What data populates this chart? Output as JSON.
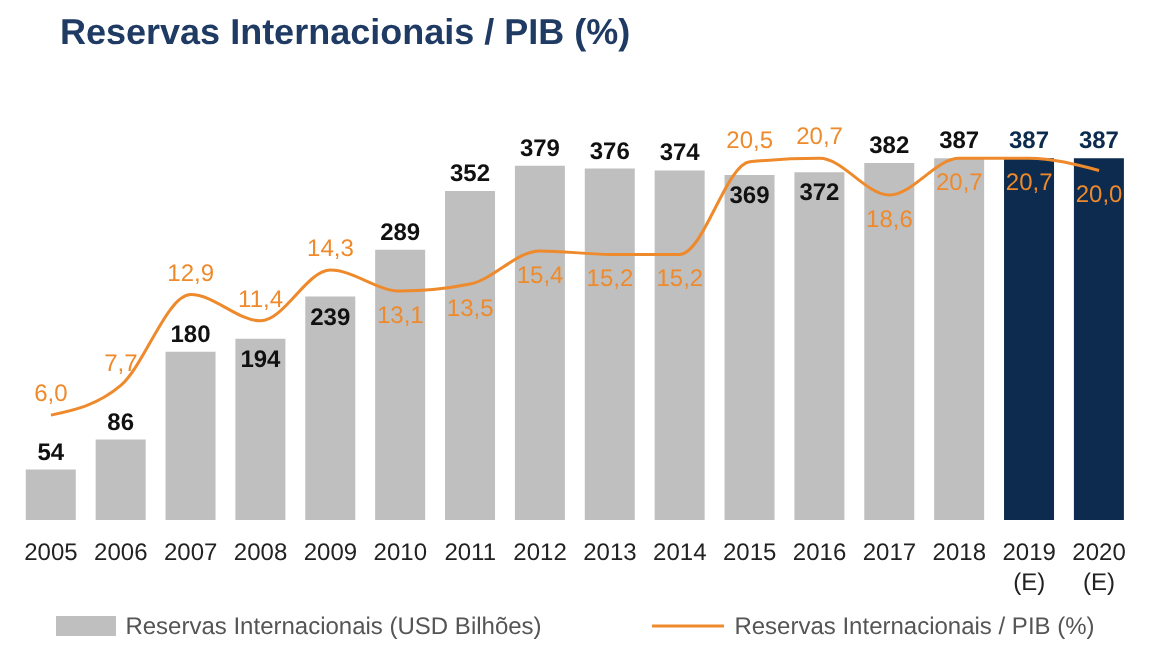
{
  "chart_data": {
    "type": "bar",
    "title": "Reservas Internacionais / PIB (%)",
    "categories": [
      "2005",
      "2006",
      "2007",
      "2008",
      "2009",
      "2010",
      "2011",
      "2012",
      "2013",
      "2014",
      "2015",
      "2016",
      "2017",
      "2018",
      "2019\n(E)",
      "2020\n(E)"
    ],
    "series": [
      {
        "name": "Reservas Internacionais (USD Bilhões)",
        "colors": [
          "#bfbfbf",
          "#bfbfbf",
          "#bfbfbf",
          "#bfbfbf",
          "#bfbfbf",
          "#bfbfbf",
          "#bfbfbf",
          "#bfbfbf",
          "#bfbfbf",
          "#bfbfbf",
          "#bfbfbf",
          "#bfbfbf",
          "#bfbfbf",
          "#bfbfbf",
          "#0d2b4e",
          "#0d2b4e"
        ],
        "values": [
          54,
          86,
          180,
          194,
          239,
          289,
          352,
          379,
          376,
          374,
          369,
          372,
          382,
          387,
          387,
          387
        ]
      },
      {
        "name": "Reservas Internacionais / PIB (%)",
        "type": "line",
        "color": "#ee8a2c",
        "axis": "y2",
        "values": [
          6.0,
          7.7,
          12.9,
          11.4,
          14.3,
          13.1,
          13.5,
          15.4,
          15.2,
          15.2,
          20.5,
          20.7,
          18.6,
          20.7,
          20.7,
          20.0
        ],
        "value_labels": [
          "6,0",
          "7,7",
          "12,9",
          "11,4",
          "14,3",
          "13,1",
          "13,5",
          "15,4",
          "15,2",
          "15,2",
          "20,5",
          "20,7",
          "18,6",
          "20,7",
          "20,7",
          "20,0"
        ]
      }
    ],
    "data_labels": true,
    "legend": "bottom"
  }
}
